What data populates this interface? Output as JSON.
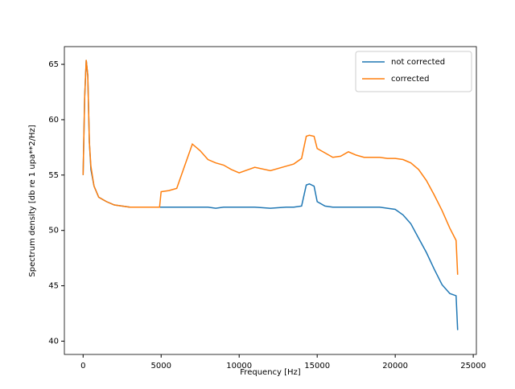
{
  "chart_data": {
    "type": "line",
    "xlabel": "Frequency [Hz]",
    "ylabel": "Spectrum density [db re 1 upa**2/Hz]",
    "x": [
      0,
      100,
      200,
      300,
      400,
      500,
      700,
      1000,
      1500,
      2000,
      2500,
      3000,
      3500,
      4000,
      4500,
      4900,
      5000,
      5500,
      6000,
      6500,
      7000,
      7500,
      8000,
      8500,
      9000,
      9500,
      10000,
      11000,
      12000,
      13000,
      13500,
      14000,
      14300,
      14500,
      14800,
      15000,
      15500,
      16000,
      16500,
      17000,
      17500,
      18000,
      19000,
      19500,
      20000,
      20500,
      21000,
      21500,
      22000,
      22500,
      23000,
      23500,
      23900,
      24000
    ],
    "series": [
      {
        "name": "not corrected",
        "color": "#1f77b4",
        "values": [
          55,
          62,
          65.4,
          64,
          58,
          55.5,
          54,
          53,
          52.6,
          52.3,
          52.2,
          52.1,
          52.1,
          52.1,
          52.1,
          52.1,
          52.1,
          52.1,
          52.1,
          52.1,
          52.1,
          52.1,
          52.1,
          52.0,
          52.1,
          52.1,
          52.1,
          52.1,
          52.0,
          52.1,
          52.1,
          52.2,
          54.1,
          54.2,
          54.0,
          52.6,
          52.2,
          52.1,
          52.1,
          52.1,
          52.1,
          52.1,
          52.1,
          52.0,
          51.9,
          51.4,
          50.6,
          49.3,
          48.0,
          46.5,
          45.1,
          44.3,
          44.1,
          41.0
        ]
      },
      {
        "name": "corrected",
        "color": "#ff7f0e",
        "values": [
          55,
          62,
          65.4,
          64,
          58,
          55.8,
          54,
          53,
          52.6,
          52.3,
          52.2,
          52.1,
          52.1,
          52.1,
          52.1,
          52.1,
          53.5,
          53.6,
          53.8,
          55.8,
          57.8,
          57.2,
          56.4,
          56.1,
          55.9,
          55.5,
          55.2,
          55.7,
          55.4,
          55.8,
          56.0,
          56.5,
          58.5,
          58.6,
          58.5,
          57.4,
          57.0,
          56.6,
          56.7,
          57.1,
          56.8,
          56.6,
          56.6,
          56.5,
          56.5,
          56.4,
          56.1,
          55.5,
          54.5,
          53.2,
          51.8,
          50.2,
          49.1,
          46.0
        ]
      }
    ],
    "xlim": [
      -1200,
      25200
    ],
    "ylim": [
      38.8,
      66.6
    ],
    "xticks": [
      0,
      5000,
      10000,
      15000,
      20000,
      25000
    ],
    "yticks": [
      40,
      45,
      50,
      55,
      60,
      65
    ],
    "legend": "upper right"
  }
}
